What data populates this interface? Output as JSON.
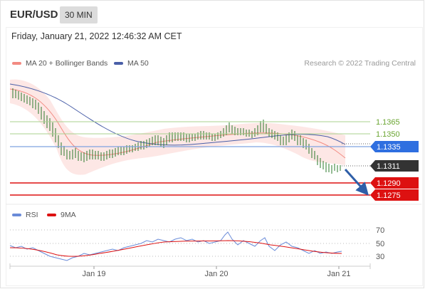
{
  "header": {
    "symbol": "EUR/USD",
    "timeframe": "30 MIN"
  },
  "timestamp": "Friday, January 21, 2022 12:46:32 AM CET",
  "legend": {
    "ma20_label": "MA 20 + Bollinger Bands",
    "ma50_label": "MA 50",
    "credit": "Research © 2022 Trading Central",
    "rsi_label": "RSI",
    "rsi_ma_label": "9MA"
  },
  "colors": {
    "ma20": "#f28b82",
    "ma50": "#4a5fa8",
    "support": "#dd1111",
    "resistance": "#8cc63f",
    "pivot": "#2f6fe0",
    "current": "#333333",
    "rsi": "#6a8bd8",
    "rsi_ma": "#dd1111"
  },
  "levels": [
    {
      "value": "1.1365",
      "type": "resistance"
    },
    {
      "value": "1.1350",
      "type": "resistance"
    },
    {
      "value": "1.1335",
      "type": "pivot"
    },
    {
      "value": "1.1311",
      "type": "current"
    },
    {
      "value": "1.1290",
      "type": "support"
    },
    {
      "value": "1.1275",
      "type": "support"
    }
  ],
  "rsi_axis": [
    "70",
    "50",
    "30"
  ],
  "x_axis": [
    "Jan 19",
    "Jan 20",
    "Jan 21"
  ]
}
